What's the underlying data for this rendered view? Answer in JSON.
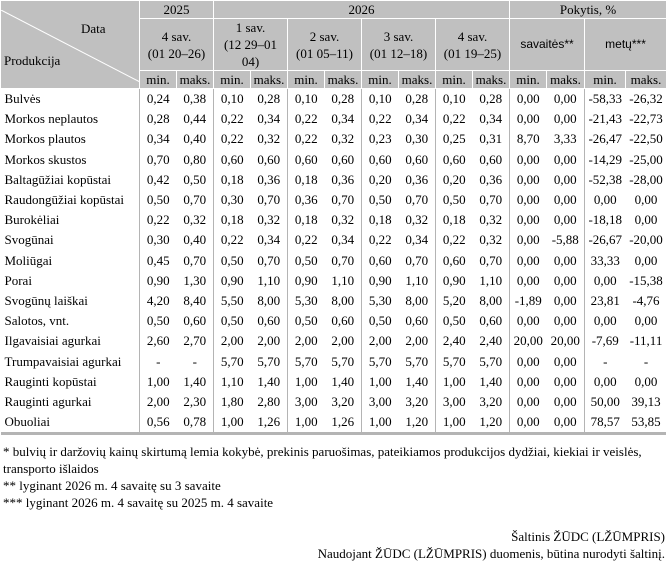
{
  "header": {
    "corner_top": "Data",
    "corner_bottom": "Produkcija",
    "year_2025": "2025",
    "year_2026": "2026",
    "change": "Pokytis, %",
    "weeks": [
      {
        "label": "4 sav.",
        "range": "(01 20–26)"
      },
      {
        "label": "1 sav.",
        "range": "(12 29–01 04)"
      },
      {
        "label": "2 sav.",
        "range": "(01 05–11)"
      },
      {
        "label": "3 sav.",
        "range": "(01 12–18)"
      },
      {
        "label": "4 sav.",
        "range": "(01 19–25)"
      }
    ],
    "change_week": "savaitės**",
    "change_year": "metų***",
    "min": "min.",
    "max": "maks."
  },
  "rows": [
    {
      "name": "Bulvės",
      "v": [
        "0,24",
        "0,38",
        "0,10",
        "0,28",
        "0,10",
        "0,28",
        "0,10",
        "0,28",
        "0,10",
        "0,28",
        "0,00",
        "0,00",
        "-58,33",
        "-26,32"
      ]
    },
    {
      "name": "Morkos neplautos",
      "v": [
        "0,28",
        "0,44",
        "0,22",
        "0,34",
        "0,22",
        "0,34",
        "0,22",
        "0,34",
        "0,22",
        "0,34",
        "0,00",
        "0,00",
        "-21,43",
        "-22,73"
      ]
    },
    {
      "name": "Morkos plautos",
      "v": [
        "0,34",
        "0,40",
        "0,22",
        "0,32",
        "0,22",
        "0,32",
        "0,23",
        "0,30",
        "0,25",
        "0,31",
        "8,70",
        "3,33",
        "-26,47",
        "-22,50"
      ]
    },
    {
      "name": "Morkos skustos",
      "v": [
        "0,70",
        "0,80",
        "0,60",
        "0,60",
        "0,60",
        "0,60",
        "0,60",
        "0,60",
        "0,60",
        "0,60",
        "0,00",
        "0,00",
        "-14,29",
        "-25,00"
      ]
    },
    {
      "name": "Baltagūžiai kopūstai",
      "v": [
        "0,42",
        "0,50",
        "0,18",
        "0,36",
        "0,18",
        "0,36",
        "0,20",
        "0,36",
        "0,20",
        "0,36",
        "0,00",
        "0,00",
        "-52,38",
        "-28,00"
      ]
    },
    {
      "name": "Raudongūžiai kopūstai",
      "v": [
        "0,50",
        "0,70",
        "0,30",
        "0,70",
        "0,36",
        "0,70",
        "0,50",
        "0,70",
        "0,50",
        "0,70",
        "0,00",
        "0,00",
        "0,00",
        "0,00"
      ]
    },
    {
      "name": "Burokėliai",
      "v": [
        "0,22",
        "0,32",
        "0,18",
        "0,32",
        "0,18",
        "0,32",
        "0,18",
        "0,32",
        "0,18",
        "0,32",
        "0,00",
        "0,00",
        "-18,18",
        "0,00"
      ]
    },
    {
      "name": "Svogūnai",
      "v": [
        "0,30",
        "0,40",
        "0,22",
        "0,34",
        "0,22",
        "0,34",
        "0,22",
        "0,34",
        "0,22",
        "0,32",
        "0,00",
        "-5,88",
        "-26,67",
        "-20,00"
      ]
    },
    {
      "name": "Moliūgai",
      "v": [
        "0,45",
        "0,70",
        "0,50",
        "0,70",
        "0,50",
        "0,70",
        "0,60",
        "0,70",
        "0,60",
        "0,70",
        "0,00",
        "0,00",
        "33,33",
        "0,00"
      ]
    },
    {
      "name": "Porai",
      "v": [
        "0,90",
        "1,30",
        "0,90",
        "1,10",
        "0,90",
        "1,10",
        "0,90",
        "1,10",
        "0,90",
        "1,10",
        "0,00",
        "0,00",
        "0,00",
        "-15,38"
      ]
    },
    {
      "name": "Svogūnų laiškai",
      "v": [
        "4,20",
        "8,40",
        "5,50",
        "8,00",
        "5,30",
        "8,00",
        "5,30",
        "8,00",
        "5,20",
        "8,00",
        "-1,89",
        "0,00",
        "23,81",
        "-4,76"
      ]
    },
    {
      "name": "Salotos, vnt.",
      "v": [
        "0,50",
        "0,60",
        "0,50",
        "0,60",
        "0,50",
        "0,60",
        "0,50",
        "0,60",
        "0,50",
        "0,60",
        "0,00",
        "0,00",
        "0,00",
        "0,00"
      ]
    },
    {
      "name": "Ilgavaisiai agurkai",
      "v": [
        "2,60",
        "2,70",
        "2,00",
        "2,00",
        "2,00",
        "2,00",
        "2,00",
        "2,00",
        "2,40",
        "2,40",
        "20,00",
        "20,00",
        "-7,69",
        "-11,11"
      ]
    },
    {
      "name": "Trumpavaisiai agurkai",
      "v": [
        "-",
        "-",
        "5,70",
        "5,70",
        "5,70",
        "5,70",
        "5,70",
        "5,70",
        "5,70",
        "5,70",
        "0,00",
        "0,00",
        "-",
        "-"
      ]
    },
    {
      "name": "Rauginti kopūstai",
      "v": [
        "1,00",
        "1,40",
        "1,10",
        "1,40",
        "1,00",
        "1,40",
        "1,00",
        "1,40",
        "1,00",
        "1,40",
        "0,00",
        "0,00",
        "0,00",
        "0,00"
      ]
    },
    {
      "name": "Rauginti agurkai",
      "v": [
        "2,00",
        "2,30",
        "1,80",
        "2,80",
        "3,00",
        "3,20",
        "3,00",
        "3,20",
        "3,00",
        "3,20",
        "0,00",
        "0,00",
        "50,00",
        "39,13"
      ]
    },
    {
      "name": "Obuoliai",
      "v": [
        "0,56",
        "0,78",
        "1,00",
        "1,26",
        "1,00",
        "1,26",
        "1,00",
        "1,20",
        "1,00",
        "1,20",
        "0,00",
        "0,00",
        "78,57",
        "53,85"
      ]
    }
  ],
  "notes": [
    "* bulvių ir daržovių kainų skirtumą lemia kokybė, prekinis paruošimas, pateikiamos produkcijos dydžiai, kiekiai ir veislės, transporto išlaidos",
    "** lyginant 2026 m. 4 savaitę su 3 savaite",
    "*** lyginant 2026 m. 4 savaitę su 2025 m. 4 savaite"
  ],
  "source": {
    "line1": "Šaltinis  ŽŪDC (LŽŪMPRIS)",
    "line2": "Naudojant ŽŪDC (LŽŪMPRIS) duomenis, būtina nurodyti šaltinį."
  }
}
